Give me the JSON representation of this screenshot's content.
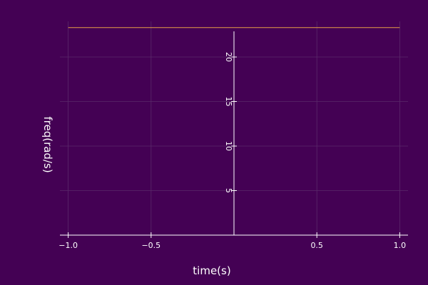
{
  "chart_data": {
    "type": "line",
    "title": "",
    "xlabel": "time(s)",
    "ylabel": "freq(rad/s)",
    "xlim": [
      -1.05,
      1.05
    ],
    "ylim": [
      0,
      24
    ],
    "xticks": [
      -1.0,
      -0.5,
      0.5,
      1.0
    ],
    "xtick_labels": [
      "−1.0",
      "−0.5",
      "0.5",
      "1.0"
    ],
    "yticks": [
      5,
      10,
      15,
      20
    ],
    "ytick_labels": [
      "5",
      "10",
      "15",
      "20"
    ],
    "grid": true,
    "legend": "none",
    "series": [
      {
        "x": [
          -1.0,
          1.0
        ],
        "y": [
          23.3,
          23.3
        ]
      }
    ],
    "colors": {
      "background": "#440154",
      "axis": "#ffffff",
      "grid": "#5a2a6a",
      "series": "#e5a046",
      "text": "#ffffff"
    }
  }
}
